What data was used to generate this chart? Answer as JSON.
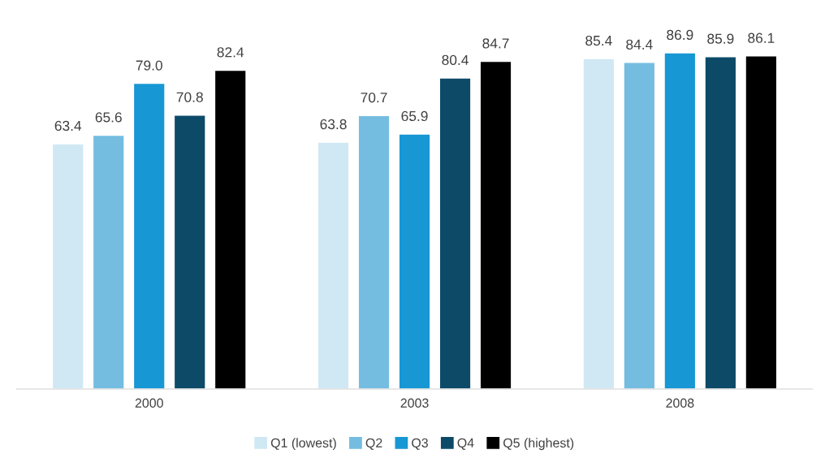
{
  "chart_data": {
    "type": "bar",
    "categories": [
      "2000",
      "2003",
      "2008"
    ],
    "series": [
      {
        "name": "Q1 (lowest)",
        "color": "#d0e8f4",
        "values": [
          63.4,
          63.8,
          85.4
        ],
        "value_labels": [
          "63.4",
          "63.8",
          "85.4"
        ]
      },
      {
        "name": "Q2",
        "color": "#74bde0",
        "values": [
          65.6,
          70.7,
          84.4
        ],
        "value_labels": [
          "65.6",
          "70.7",
          "84.4"
        ]
      },
      {
        "name": "Q3",
        "color": "#1797d4",
        "values": [
          79.0,
          65.9,
          86.9
        ],
        "value_labels": [
          "79.0",
          "65.9",
          "86.9"
        ]
      },
      {
        "name": "Q4",
        "color": "#0c4a68",
        "values": [
          70.8,
          80.4,
          85.9
        ],
        "value_labels": [
          "70.8",
          "80.4",
          "85.9"
        ]
      },
      {
        "name": "Q5 (highest)",
        "color": "#000000",
        "values": [
          82.4,
          84.7,
          86.1
        ],
        "value_labels": [
          "82.4",
          "84.7",
          "86.1"
        ]
      }
    ],
    "grid": false,
    "legend": "bottom",
    "tick_labels": "x"
  }
}
